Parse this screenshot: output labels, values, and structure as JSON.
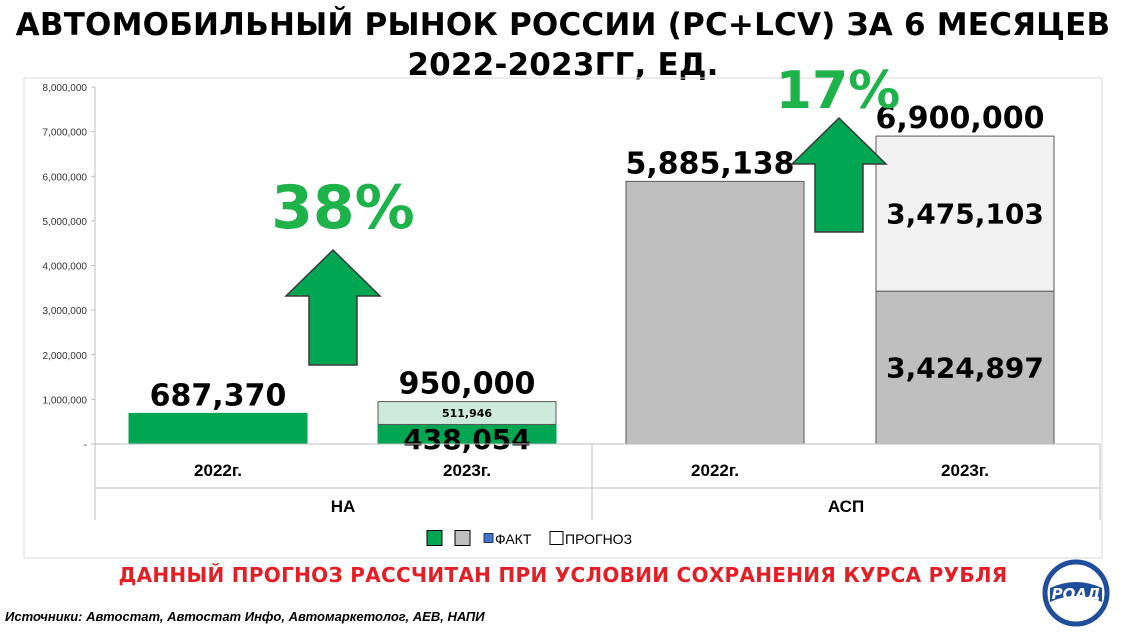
{
  "title": {
    "line1": "АВТОМОБИЛЬНЫЙ РЫНОК РОССИИ (PC+LCV) ЗА 6 МЕСЯЦЕВ",
    "line2": "2022-2023ГГ, ЕД."
  },
  "chart_data": {
    "type": "bar",
    "stacked": true,
    "groups": [
      {
        "name": "НА",
        "categories": [
          "2022г.",
          "2023г."
        ]
      },
      {
        "name": "АСП",
        "categories": [
          "2022г.",
          "2023г."
        ]
      }
    ],
    "bars": [
      {
        "group": "НА",
        "category": "2022г.",
        "fact": 687370,
        "forecast": 0,
        "total_label": "687,370",
        "fact_label": "",
        "forecast_label": "",
        "color": "#00a651"
      },
      {
        "group": "НА",
        "category": "2023г.",
        "fact": 438054,
        "forecast": 511946,
        "total_label": "950,000",
        "fact_label": "438,054",
        "forecast_label": "511,946",
        "color": "#00a651"
      },
      {
        "group": "АСП",
        "category": "2022г.",
        "fact": 5885138,
        "forecast": 0,
        "total_label": "5,885,138",
        "fact_label": "",
        "forecast_label": "",
        "color": "#bfbfbf"
      },
      {
        "group": "АСП",
        "category": "2023г.",
        "fact": 3424897,
        "forecast": 3475103,
        "total_label": "6,900,000",
        "fact_label": "3,424,897",
        "forecast_label": "3,475,103",
        "color": "#bfbfbf"
      }
    ],
    "yticks": [
      "8,000,000",
      "7,000,000",
      "6,000,000",
      "5,000,000",
      "4,000,000",
      "3,000,000",
      "2,000,000",
      "1,000,000",
      "-"
    ],
    "ylim": [
      0,
      8000000
    ],
    "growth": [
      {
        "group": "НА",
        "label": "38%"
      },
      {
        "group": "АСП",
        "label": "17%"
      }
    ],
    "legend": [
      "",
      "",
      "ФАКТ",
      "ПРОГНОЗ"
    ],
    "legend_position": "bottom",
    "grid": false,
    "colors": {
      "green": "#00a651",
      "grey": "#bfbfbf",
      "forecast_na": "#cdebdc",
      "forecast_asp": "#f2f2f2",
      "fact": "#4472c4"
    }
  },
  "note": "ДАННЫЙ ПРОГНОЗ РАССЧИТАН ПРИ УСЛОВИИ СОХРАНЕНИЯ КУРСА РУБЛЯ",
  "source": "Источники: Автостат, Автостат Инфо, Автомаркетолог, АЕВ, НАПИ",
  "logo_text": "РОАД"
}
